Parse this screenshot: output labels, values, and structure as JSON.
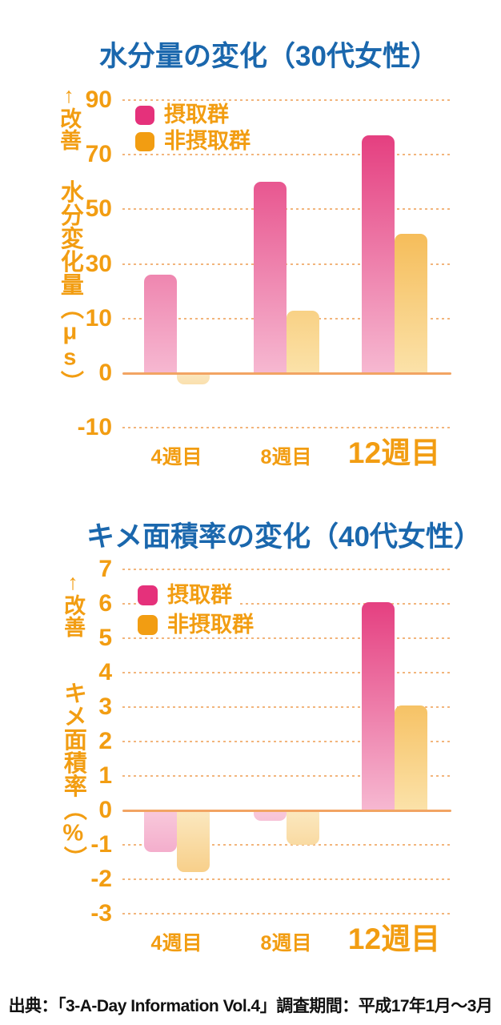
{
  "footer": {
    "text": "出典：「3-A-Day Information Vol.4」調査期間：平成17年1月～3月"
  },
  "colors": {
    "title_blue": "#1a67ad",
    "axis_orange": "#f29d12",
    "grid_orange": "#f2b57c",
    "zero_line_orange": "#f2a463",
    "intake_pink": "#e5317b",
    "intake_pink_dark": "#e22d74",
    "intake_pink_light": "#f6b8d1",
    "intake_pink_neg_light": "#f8c9db",
    "intake_pink_neg_dark": "#ee86b6",
    "non_intake_orange": "#f29d12",
    "non_intake_orange_dark": "#f0990e",
    "non_intake_orange_light": "#fbe2a9",
    "non_intake_orange_neg_light": "#fbe8c0",
    "non_intake_orange_neg_dark": "#f5bf66",
    "footer_black": "#111111"
  },
  "chart_data": [
    {
      "type": "bar",
      "title": "水分量の変化（30代女性）",
      "improvement_label": "↑改善",
      "ylabel": "水分変化量（μs）",
      "xlabel": "",
      "y_ticks": [
        90,
        70,
        50,
        30,
        10,
        0,
        -10
      ],
      "ylim": [
        -10,
        90
      ],
      "grid": "horizontal-dotted",
      "legend_position": "top-left-inside",
      "categories": [
        "4週目",
        "8週目",
        "12週目"
      ],
      "series": [
        {
          "name": "摂取群",
          "color": "#e5317b",
          "values": [
            26,
            60,
            77
          ]
        },
        {
          "name": "非摂取群",
          "color": "#f29d12",
          "values": [
            -2,
            13,
            41
          ]
        }
      ]
    },
    {
      "type": "bar",
      "title": "キメ面積率の変化（40代女性）",
      "improvement_label": "↑改善",
      "ylabel": "キメ面積率（%）",
      "xlabel": "",
      "y_ticks": [
        7,
        6,
        5,
        4,
        3,
        2,
        1,
        0,
        -1,
        -2,
        -3
      ],
      "ylim": [
        -3,
        7
      ],
      "grid": "horizontal-dotted",
      "legend_position": "top-left-inside",
      "categories": [
        "4週目",
        "8週目",
        "12週目"
      ],
      "series": [
        {
          "name": "摂取群",
          "color": "#e5317b",
          "values": [
            -1.2,
            -0.3,
            6.05
          ]
        },
        {
          "name": "非摂取群",
          "color": "#f29d12",
          "values": [
            -1.8,
            -1.0,
            3.05
          ]
        }
      ]
    }
  ]
}
